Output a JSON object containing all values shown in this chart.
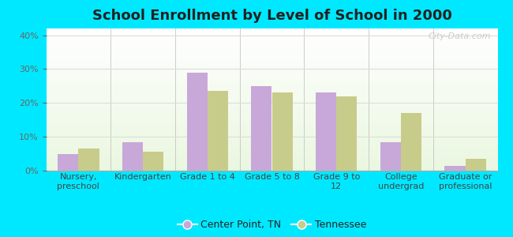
{
  "title": "School Enrollment by Level of School in 2000",
  "categories": [
    "Nursery,\npreschool",
    "Kindergarten",
    "Grade 1 to 4",
    "Grade 5 to 8",
    "Grade 9 to\n12",
    "College\nundergrad",
    "Graduate or\nprofessional"
  ],
  "center_point": [
    5.0,
    8.5,
    29.0,
    25.0,
    23.0,
    8.5,
    1.5
  ],
  "tennessee": [
    6.5,
    5.5,
    23.5,
    23.0,
    22.0,
    17.0,
    3.5
  ],
  "color_center": "#c8a8d8",
  "color_tennessee": "#c8cc8a",
  "background_outer": "#00e8ff",
  "ylim": [
    0,
    42
  ],
  "yticks": [
    0,
    10,
    20,
    30,
    40
  ],
  "legend_center": "Center Point, TN",
  "legend_tennessee": "Tennessee",
  "bar_width": 0.32,
  "title_fontsize": 13,
  "tick_fontsize": 8,
  "legend_fontsize": 9
}
